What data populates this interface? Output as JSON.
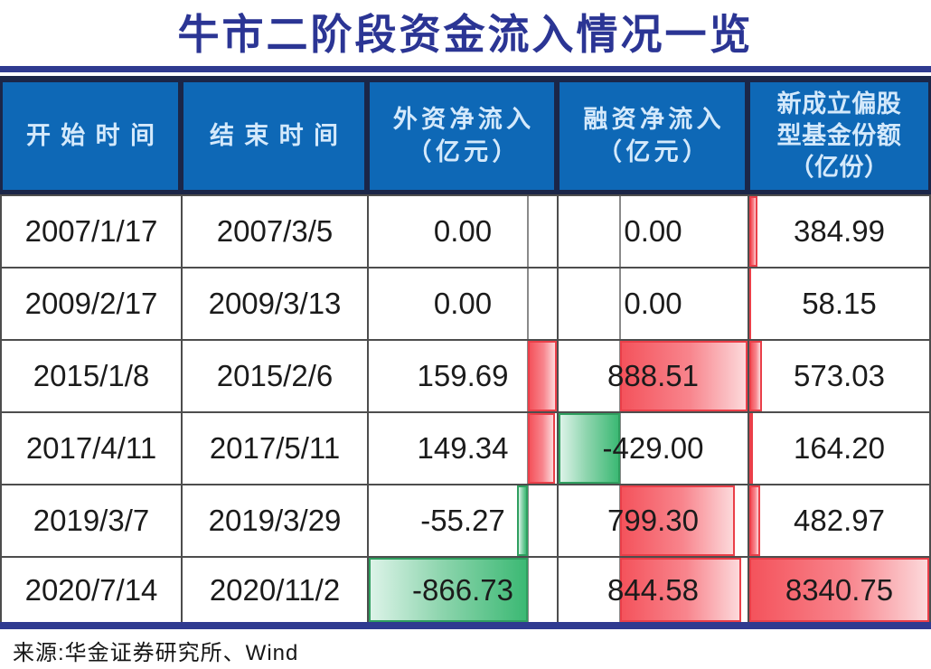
{
  "title": "牛市二阶段资金流入情况一览",
  "source": "来源:华金证券研究所、Wind",
  "colors": {
    "title_color": "#2b3594",
    "rule_color": "#2f3a90",
    "header_frame": "#1b2648",
    "header_bg": "#0e68b6",
    "header_text": "#d4e9fb",
    "grid_color": "#4d4d4d",
    "axis_color": "#8a8a8a",
    "pos_solid": "#f4535c",
    "pos_light": "#fcd9db",
    "pos_border": "#ea3f49",
    "neg_solid": "#3cb974",
    "neg_light": "#dcf3e8",
    "neg_border": "#2f9f5f"
  },
  "table": {
    "columns": [
      {
        "id": "start-time",
        "lines": [
          "开始时间"
        ],
        "numeric": false
      },
      {
        "id": "end-time",
        "lines": [
          "结束时间"
        ],
        "numeric": false
      },
      {
        "id": "foreign-net-inflow",
        "lines": [
          "外资净流入",
          "（亿元）"
        ],
        "numeric": true
      },
      {
        "id": "margin-net-inflow",
        "lines": [
          "融资净流入",
          "（亿元）"
        ],
        "numeric": true
      },
      {
        "id": "new-fund-shares",
        "lines": [
          "新成立偏股",
          "型基金份额",
          "（亿份）"
        ],
        "numeric": true
      }
    ],
    "rows": [
      {
        "cells": [
          "2007/1/17",
          "2007/3/5",
          "0.00",
          "0.00",
          "384.99"
        ]
      },
      {
        "cells": [
          "2009/2/17",
          "2009/3/13",
          "0.00",
          "0.00",
          "58.15"
        ]
      },
      {
        "cells": [
          "2015/1/8",
          "2015/2/6",
          "159.69",
          "888.51",
          "573.03"
        ]
      },
      {
        "cells": [
          "2017/4/11",
          "2017/5/11",
          "149.34",
          "-429.00",
          "164.20"
        ]
      },
      {
        "cells": [
          "2019/3/7",
          "2019/3/29",
          "-55.27",
          "799.30",
          "482.97"
        ]
      },
      {
        "cells": [
          "2020/7/14",
          "2020/11/2",
          "-866.73",
          "844.58",
          "8340.75"
        ]
      }
    ]
  },
  "chart_data": {
    "type": "table",
    "title": "牛市二阶段资金流入情况一览",
    "columns": [
      "开始时间",
      "结束时间",
      "外资净流入（亿元）",
      "融资净流入（亿元）",
      "新成立偏股型基金份额（亿份）"
    ],
    "rows": [
      [
        "2007/1/17",
        "2007/3/5",
        0.0,
        0.0,
        384.99
      ],
      [
        "2009/2/17",
        "2009/3/13",
        0.0,
        0.0,
        58.15
      ],
      [
        "2015/1/8",
        "2015/2/6",
        159.69,
        888.51,
        573.03
      ],
      [
        "2017/4/11",
        "2017/5/11",
        149.34,
        -429.0,
        164.2
      ],
      [
        "2019/3/7",
        "2019/3/29",
        -55.27,
        799.3,
        482.97
      ],
      [
        "2020/7/14",
        "2020/11/2",
        -866.73,
        844.58,
        8340.75
      ]
    ],
    "conditional_formatting": "excel-style data bars: red gradient = positive values, green gradient = negative values, gray zero-axis line shown in columns containing negatives",
    "source": "来源:华金证券研究所、Wind"
  }
}
